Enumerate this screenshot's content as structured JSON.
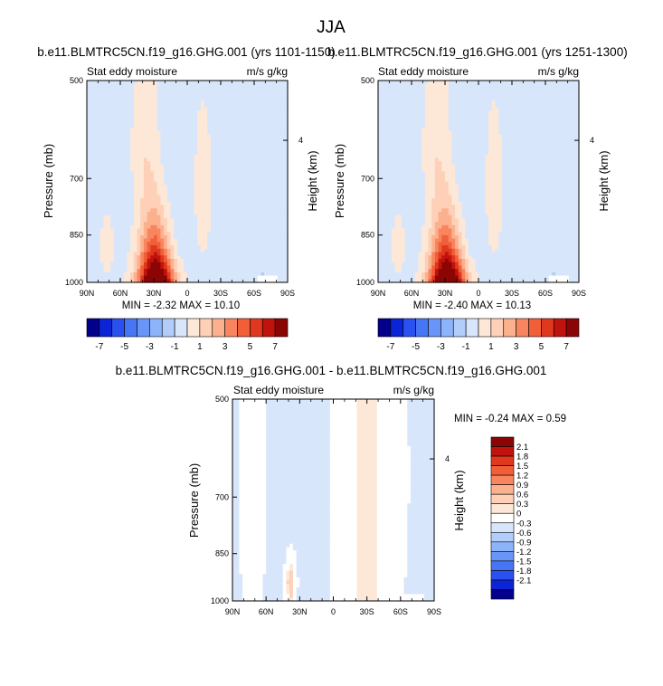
{
  "figure": {
    "title": "JJA"
  },
  "palette": {
    "full": [
      "#03008c",
      "#0a24d6",
      "#2b50f0",
      "#4776f4",
      "#6895f7",
      "#8db3fa",
      "#b3cdfb",
      "#d8e6fb",
      "#fde8d8",
      "#fdd0b7",
      "#fcb18e",
      "#f8855f",
      "#f15f38",
      "#e0381e",
      "#c0130e",
      "#8c0505"
    ],
    "diff": [
      "#03008c",
      "#0a24d6",
      "#2b50f0",
      "#4776f4",
      "#6895f7",
      "#8db3fa",
      "#b3cdfb",
      "#d8e6fb",
      "#ffffff",
      "#fde8d8",
      "#fdd0b7",
      "#fcb18e",
      "#f8855f",
      "#f15f38",
      "#e0381e",
      "#c0130e",
      "#8c0505"
    ]
  },
  "chart_data": [
    {
      "type": "heatmap",
      "title": "b.e11.BLMTRC5CN.f19_g16.GHG.001 (yrs 1101-1150)",
      "left_label": "Stat eddy moisture",
      "right_label": "m/s g/kg",
      "xlabel": "",
      "ylabel": "Pressure (mb)",
      "y2label": "Height (km)",
      "xticks": [
        "90N",
        "60N",
        "30N",
        "0",
        "30S",
        "60S",
        "90S"
      ],
      "yticks": [
        "500",
        "700",
        "850",
        "1000"
      ],
      "y2ticks": [
        "4"
      ],
      "stats": "MIN = -2.32   MAX = 10.10",
      "min": -2.32,
      "max": 10.1,
      "features": [
        {
          "lat": 30,
          "p": 940,
          "value": 10.1
        },
        {
          "lat": 32,
          "p": 850,
          "value": 6.5
        },
        {
          "lat": 34,
          "p": 740,
          "value": 3.5
        },
        {
          "lat": 35,
          "p": 600,
          "value": 1.2
        },
        {
          "lat": 70,
          "p": 880,
          "value": 0.6
        },
        {
          "lat": -14,
          "p": 700,
          "value": 0.5
        },
        {
          "lat": 10,
          "p": 800,
          "value": -0.6
        },
        {
          "lat": -70,
          "p": 980,
          "value": -0.8
        }
      ],
      "colorbar_labels": [
        "-7",
        "-5",
        "-3",
        "-1",
        "1",
        "3",
        "5",
        "7"
      ]
    },
    {
      "type": "heatmap",
      "title": "b.e11.BLMTRC5CN.f19_g16.GHG.001 (yrs 1251-1300)",
      "left_label": "Stat eddy moisture",
      "right_label": "m/s g/kg",
      "xlabel": "",
      "ylabel": "Pressure (mb)",
      "y2label": "Height (km)",
      "xticks": [
        "90N",
        "60N",
        "30N",
        "0",
        "30S",
        "60S",
        "90S"
      ],
      "yticks": [
        "500",
        "700",
        "850",
        "1000"
      ],
      "y2ticks": [
        "4"
      ],
      "stats": "MIN = -2.40   MAX = 10.13",
      "min": -2.4,
      "max": 10.13,
      "features": [
        {
          "lat": 30,
          "p": 940,
          "value": 10.1
        },
        {
          "lat": 32,
          "p": 850,
          "value": 6.5
        },
        {
          "lat": 34,
          "p": 740,
          "value": 3.5
        },
        {
          "lat": 35,
          "p": 600,
          "value": 1.2
        },
        {
          "lat": 70,
          "p": 880,
          "value": 0.6
        },
        {
          "lat": -14,
          "p": 700,
          "value": 0.5
        },
        {
          "lat": 10,
          "p": 800,
          "value": -0.6
        },
        {
          "lat": -70,
          "p": 980,
          "value": -0.8
        }
      ],
      "colorbar_labels": [
        "-7",
        "-5",
        "-3",
        "-1",
        "1",
        "3",
        "5",
        "7"
      ]
    },
    {
      "type": "heatmap",
      "title": "b.e11.BLMTRC5CN.f19_g16.GHG.001 - b.e11.BLMTRC5CN.f19_g16.GHG.001",
      "left_label": "Stat eddy moisture",
      "right_label": "m/s g/kg",
      "xlabel": "",
      "ylabel": "Pressure (mb)",
      "y2label": "Height (km)",
      "xticks": [
        "90N",
        "60N",
        "30N",
        "0",
        "30S",
        "60S",
        "90S"
      ],
      "yticks": [
        "500",
        "700",
        "850",
        "1000"
      ],
      "y2ticks": [
        "4"
      ],
      "stats": "MIN = -0.24   MAX =  0.59",
      "min": -0.24,
      "max": 0.59,
      "features": [
        {
          "lat": 38,
          "p": 930,
          "value": 0.5
        },
        {
          "lat": -20,
          "p": 700,
          "value": 0.2
        },
        {
          "lat": 55,
          "p": 700,
          "value": -0.1
        }
      ],
      "colorbar_labels": [
        "2.1",
        "1.8",
        "1.5",
        "1.2",
        "0.9",
        "0.6",
        "0.3",
        "0",
        "-0.3",
        "-0.6",
        "-0.9",
        "-1.2",
        "-1.5",
        "-1.8",
        "-2.1"
      ]
    }
  ]
}
